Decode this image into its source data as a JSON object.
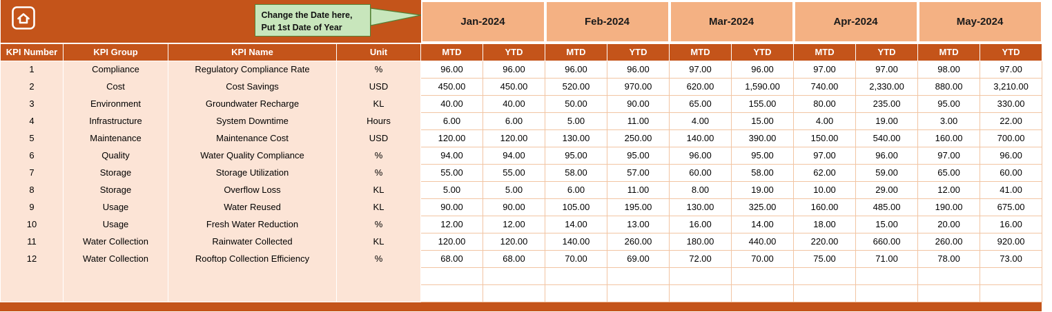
{
  "callout": {
    "line1": "Change the Date here,",
    "line2": "Put 1st Date of Year"
  },
  "months": [
    "Jan-2024",
    "Feb-2024",
    "Mar-2024",
    "Apr-2024",
    "May-2024"
  ],
  "sub_headers": [
    "MTD",
    "YTD"
  ],
  "table": {
    "columns": [
      "KPI Number",
      "KPI Group",
      "KPI Name",
      "Unit"
    ],
    "rows": [
      {
        "number": "1",
        "group": "Compliance",
        "name": "Regulatory Compliance Rate",
        "unit": "%",
        "values": [
          "96.00",
          "96.00",
          "96.00",
          "96.00",
          "97.00",
          "96.00",
          "97.00",
          "97.00",
          "98.00",
          "97.00"
        ]
      },
      {
        "number": "2",
        "group": "Cost",
        "name": "Cost Savings",
        "unit": "USD",
        "values": [
          "450.00",
          "450.00",
          "520.00",
          "970.00",
          "620.00",
          "1,590.00",
          "740.00",
          "2,330.00",
          "880.00",
          "3,210.00"
        ]
      },
      {
        "number": "3",
        "group": "Environment",
        "name": "Groundwater Recharge",
        "unit": "KL",
        "values": [
          "40.00",
          "40.00",
          "50.00",
          "90.00",
          "65.00",
          "155.00",
          "80.00",
          "235.00",
          "95.00",
          "330.00"
        ]
      },
      {
        "number": "4",
        "group": "Infrastructure",
        "name": "System Downtime",
        "unit": "Hours",
        "values": [
          "6.00",
          "6.00",
          "5.00",
          "11.00",
          "4.00",
          "15.00",
          "4.00",
          "19.00",
          "3.00",
          "22.00"
        ]
      },
      {
        "number": "5",
        "group": "Maintenance",
        "name": "Maintenance Cost",
        "unit": "USD",
        "values": [
          "120.00",
          "120.00",
          "130.00",
          "250.00",
          "140.00",
          "390.00",
          "150.00",
          "540.00",
          "160.00",
          "700.00"
        ]
      },
      {
        "number": "6",
        "group": "Quality",
        "name": "Water Quality Compliance",
        "unit": "%",
        "values": [
          "94.00",
          "94.00",
          "95.00",
          "95.00",
          "96.00",
          "95.00",
          "97.00",
          "96.00",
          "97.00",
          "96.00"
        ]
      },
      {
        "number": "7",
        "group": "Storage",
        "name": "Storage Utilization",
        "unit": "%",
        "values": [
          "55.00",
          "55.00",
          "58.00",
          "57.00",
          "60.00",
          "58.00",
          "62.00",
          "59.00",
          "65.00",
          "60.00"
        ]
      },
      {
        "number": "8",
        "group": "Storage",
        "name": "Overflow Loss",
        "unit": "KL",
        "values": [
          "5.00",
          "5.00",
          "6.00",
          "11.00",
          "8.00",
          "19.00",
          "10.00",
          "29.00",
          "12.00",
          "41.00"
        ]
      },
      {
        "number": "9",
        "group": "Usage",
        "name": "Water Reused",
        "unit": "KL",
        "values": [
          "90.00",
          "90.00",
          "105.00",
          "195.00",
          "130.00",
          "325.00",
          "160.00",
          "485.00",
          "190.00",
          "675.00"
        ]
      },
      {
        "number": "10",
        "group": "Usage",
        "name": "Fresh Water Reduction",
        "unit": "%",
        "values": [
          "12.00",
          "12.00",
          "14.00",
          "13.00",
          "16.00",
          "14.00",
          "18.00",
          "15.00",
          "20.00",
          "16.00"
        ]
      },
      {
        "number": "11",
        "group": "Water Collection",
        "name": "Rainwater Collected",
        "unit": "KL",
        "values": [
          "120.00",
          "120.00",
          "140.00",
          "260.00",
          "180.00",
          "440.00",
          "220.00",
          "660.00",
          "260.00",
          "920.00"
        ]
      },
      {
        "number": "12",
        "group": "Water Collection",
        "name": "Rooftop Collection Efficiency",
        "unit": "%",
        "values": [
          "68.00",
          "68.00",
          "70.00",
          "69.00",
          "72.00",
          "70.00",
          "75.00",
          "71.00",
          "78.00",
          "73.00"
        ]
      }
    ],
    "empty_row_count": 2
  },
  "colors": {
    "band": "#C4541A",
    "month_header_bg": "#F4B183",
    "row_label_bg": "#FCE4D6",
    "grid_border": "#F2C4A2",
    "callout_bg": "#C8E6BC",
    "callout_border": "#538135",
    "header_text": "#FFFFFF"
  }
}
